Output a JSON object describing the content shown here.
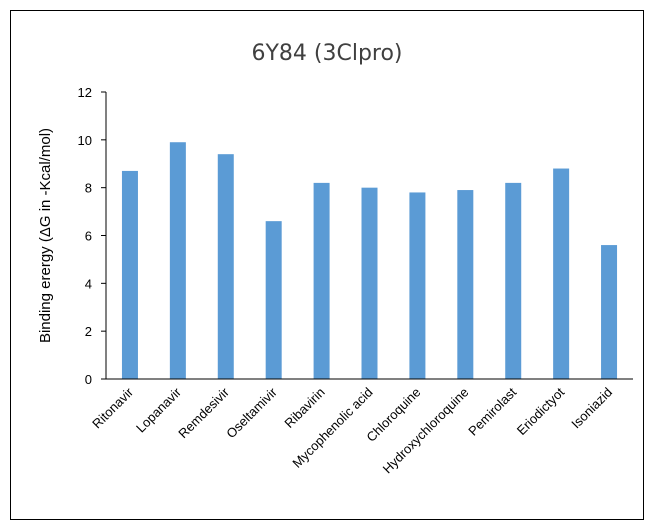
{
  "chart_data": {
    "type": "bar",
    "title": "6Y84 (3Clpro)",
    "xlabel": "",
    "ylabel": "Binding erergy (ΔG in -Kcal/mol)",
    "ylim": [
      0,
      12
    ],
    "yticks": [
      0,
      2,
      4,
      6,
      8,
      10,
      12
    ],
    "grid": false,
    "legend": "none",
    "bar_color": "#5B9BD5",
    "categories": [
      "Ritonavir",
      "Lopanavir",
      "Remdesivir",
      "Oseltamivir",
      "Ribavirin",
      "Mycophenolic acid",
      "Chloroquine",
      "Hydroxychloroquine",
      "Pemirolast",
      "Eriodictyot",
      "Isoniazid"
    ],
    "values": [
      8.7,
      9.9,
      9.4,
      6.6,
      8.2,
      8.0,
      7.8,
      7.9,
      8.2,
      8.8,
      5.6
    ]
  }
}
